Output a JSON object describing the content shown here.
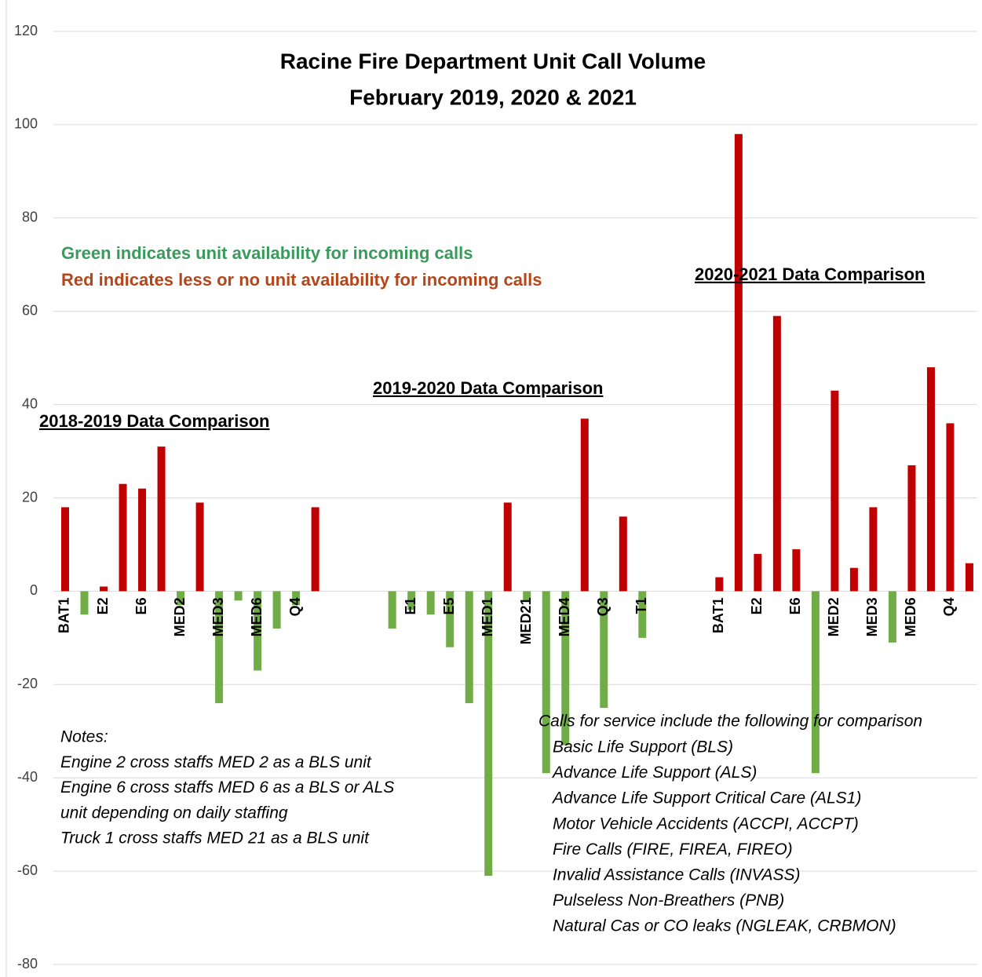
{
  "chart_data": {
    "type": "bar",
    "title": [
      "Racine Fire Department Unit Call Volume",
      "February 2019, 2020 & 2021"
    ],
    "categories": [
      "BAT1",
      null,
      "E2",
      null,
      "E6",
      null,
      "MED2",
      null,
      "MED3",
      null,
      "MED6",
      null,
      "Q4",
      null,
      null,
      null,
      null,
      null,
      "E1",
      null,
      "E5",
      null,
      "MED1",
      null,
      "MED21",
      null,
      "MED4",
      null,
      "Q3",
      null,
      "T1",
      null,
      null,
      null,
      "BAT1",
      null,
      "E2",
      null,
      "E6",
      null,
      "MED2",
      null,
      "MED3",
      null,
      "MED6",
      null,
      "Q4",
      null
    ],
    "values": [
      18,
      -5,
      1,
      23,
      22,
      31,
      -3,
      19,
      -24,
      -2,
      -17,
      -8,
      -3,
      18,
      null,
      null,
      null,
      -8,
      -4,
      -5,
      -12,
      -24,
      -61,
      19,
      -2,
      -39,
      -33,
      37,
      -25,
      16,
      -10,
      null,
      null,
      null,
      3,
      98,
      8,
      59,
      9,
      -39,
      43,
      5,
      18,
      -11,
      27,
      48,
      36,
      6
    ],
    "positive_color": "#c00000",
    "negative_color": "#70ad47",
    "ylim": [
      -80,
      120
    ],
    "yticks": [
      -80,
      -60,
      -40,
      -20,
      0,
      20,
      40,
      60,
      80,
      100,
      120
    ],
    "grid": true,
    "legend_notes": [
      "Green indicates unit availability for incoming calls",
      "Red indicates less or no unit availability for incoming calls"
    ],
    "group_labels": [
      "2018-2019 Data Comparison",
      "2019-2020 Data Comparison",
      "2020-2021 Data Comparison"
    ],
    "notes": [
      "Notes:",
      "Engine 2 cross staffs MED 2 as a BLS unit",
      "Engine 6 cross staffs MED 6 as a BLS or ALS",
      "unit depending on daily staffing",
      "Truck 1 cross staffs MED 21 as a BLS unit"
    ],
    "calls_title": "Calls for service include the following for comparison",
    "calls": [
      "Basic Life Support (BLS)",
      "Advance Life Support (ALS)",
      "Advance Life Support Critical Care (ALS1)",
      "Motor Vehicle Accidents (ACCPI, ACCPT)",
      "Fire Calls (FIRE, FIREA, FIREO)",
      "Invalid Assistance Calls (INVASS)",
      "Pulseless Non-Breathers (PNB)",
      "Natural Cas or CO leaks (NGLEAK, CRBMON)"
    ]
  }
}
